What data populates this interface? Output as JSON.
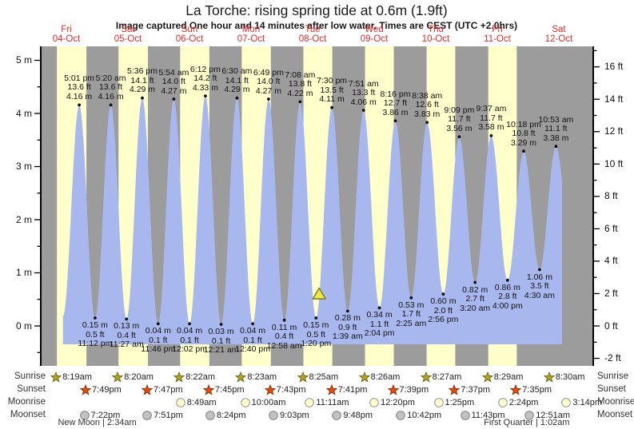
{
  "title": "La Torche: rising  spring tide at 0.6m (1.9ft)",
  "subtitle": "Image captured One hour and 14 minutes after low water. Times are CEST (UTC +2.0hrs)",
  "astro_labels": {
    "sunrise": "Sunrise",
    "sunset": "Sunset",
    "moonrise": "Moonrise",
    "moonset": "Moonset"
  },
  "colors": {
    "band_day_yellow": "#ffffcc",
    "band_night_gray": "#9c9c9c",
    "tide_fill_blue": "#a8b8ee",
    "date_red": "#e32b2b",
    "axis_black": "#000000",
    "marker_fill": "#ece84f",
    "marker_stroke": "#7c7c24",
    "sunrise_star_fill": "#b3a229",
    "sunrise_star_stroke": "#6f6f1d",
    "sunset_star_fill": "#dd4f16",
    "sunset_star_stroke": "#9b2d00",
    "moonrise_circle_fill": "#ffffd0",
    "moonrise_circle_stroke": "#979797",
    "moonset_circle_fill": "#c2c2c2",
    "moonset_circle_stroke": "#848484"
  },
  "chart_data": {
    "type": "area",
    "title": "La Torche: rising  spring tide at 0.6m (1.9ft)",
    "days": [
      {
        "name": "Fri",
        "date": "04-Oct"
      },
      {
        "name": "Sat",
        "date": "05-Oct"
      },
      {
        "name": "Sun",
        "date": "06-Oct"
      },
      {
        "name": "Mon",
        "date": "07-Oct"
      },
      {
        "name": "Tue",
        "date": "08-Oct"
      },
      {
        "name": "Wed",
        "date": "09-Oct"
      },
      {
        "name": "Thu",
        "date": "10-Oct"
      },
      {
        "name": "Fri",
        "date": "11-Oct"
      },
      {
        "name": "Sat",
        "date": "12-Oct"
      }
    ],
    "y_axis_left": {
      "unit": "m",
      "ticks": [
        "5 m",
        "4 m",
        "3 m",
        "2 m",
        "1 m",
        "0 m"
      ],
      "tick_values": [
        5,
        4,
        3,
        2,
        1,
        0
      ]
    },
    "y_axis_right": {
      "unit": "ft",
      "ticks": [
        "16 ft",
        "14 ft",
        "12 ft",
        "10 ft",
        "8 ft",
        "6 ft",
        "4 ft",
        "2 ft",
        "0 ft",
        "-2 ft"
      ],
      "tick_values": [
        16,
        14,
        12,
        10,
        8,
        6,
        4,
        2,
        0,
        -2
      ]
    },
    "tide_events": [
      {
        "type": "low",
        "day": 0,
        "time": "10:40 am",
        "m": 0.18,
        "labeled": false
      },
      {
        "type": "high",
        "day": 0,
        "time": "5:01 pm",
        "m": 4.16,
        "ft": 13.6,
        "labeled": true
      },
      {
        "type": "low",
        "day": 0,
        "time": "11:12 pm",
        "m": 0.15,
        "ft": 0.5,
        "labeled": true
      },
      {
        "type": "high",
        "day": 1,
        "time": "5:20 am",
        "m": 4.16,
        "ft": 13.6,
        "labeled": true
      },
      {
        "type": "low",
        "day": 1,
        "time": "11:27 am",
        "m": 0.13,
        "ft": 0.4,
        "labeled": true
      },
      {
        "type": "high",
        "day": 1,
        "time": "5:36 pm",
        "m": 4.29,
        "ft": 14.1,
        "labeled": true
      },
      {
        "type": "low",
        "day": 1,
        "time": "11:46 pm",
        "m": 0.04,
        "ft": 0.1,
        "labeled": true
      },
      {
        "type": "high",
        "day": 2,
        "time": "5:54 am",
        "m": 4.27,
        "ft": 14.0,
        "labeled": true
      },
      {
        "type": "low",
        "day": 2,
        "time": "12:02 pm",
        "m": 0.04,
        "ft": 0.1,
        "labeled": true
      },
      {
        "type": "high",
        "day": 2,
        "time": "6:12 pm",
        "m": 4.33,
        "ft": 14.2,
        "labeled": true
      },
      {
        "type": "low",
        "day": 3,
        "time": "12:21 am",
        "m": 0.03,
        "ft": 0.1,
        "labeled": true
      },
      {
        "type": "high",
        "day": 3,
        "time": "6:30 am",
        "m": 4.29,
        "ft": 14.1,
        "labeled": true
      },
      {
        "type": "low",
        "day": 3,
        "time": "12:40 pm",
        "m": 0.04,
        "ft": 0.1,
        "labeled": true
      },
      {
        "type": "high",
        "day": 3,
        "time": "6:49 pm",
        "m": 4.27,
        "ft": 14.0,
        "labeled": true
      },
      {
        "type": "low",
        "day": 4,
        "time": "12:58 am",
        "m": 0.11,
        "ft": 0.4,
        "labeled": true
      },
      {
        "type": "high",
        "day": 4,
        "time": "7:08 am",
        "m": 4.22,
        "ft": 13.8,
        "labeled": true
      },
      {
        "type": "low",
        "day": 4,
        "time": "1:20 pm",
        "m": 0.15,
        "ft": 0.5,
        "labeled": true
      },
      {
        "type": "high",
        "day": 4,
        "time": "7:30 pm",
        "m": 4.11,
        "ft": 13.5,
        "labeled": true
      },
      {
        "type": "low",
        "day": 5,
        "time": "1:39 am",
        "m": 0.28,
        "ft": 0.9,
        "labeled": true
      },
      {
        "type": "high",
        "day": 5,
        "time": "7:51 am",
        "m": 4.06,
        "ft": 13.3,
        "labeled": true
      },
      {
        "type": "low",
        "day": 5,
        "time": "2:04 pm",
        "m": 0.34,
        "ft": 1.1,
        "labeled": true
      },
      {
        "type": "high",
        "day": 5,
        "time": "8:16 pm",
        "m": 3.86,
        "ft": 12.7,
        "labeled": true
      },
      {
        "type": "low",
        "day": 6,
        "time": "2:25 am",
        "m": 0.53,
        "ft": 1.7,
        "labeled": true
      },
      {
        "type": "high",
        "day": 6,
        "time": "8:38 am",
        "m": 3.83,
        "ft": 12.6,
        "labeled": true
      },
      {
        "type": "low",
        "day": 6,
        "time": "2:56 pm",
        "m": 0.6,
        "ft": 2.0,
        "labeled": true
      },
      {
        "type": "high",
        "day": 6,
        "time": "9:09 pm",
        "m": 3.56,
        "ft": 11.7,
        "labeled": true
      },
      {
        "type": "low",
        "day": 7,
        "time": "3:20 am",
        "m": 0.82,
        "ft": 2.7,
        "labeled": true
      },
      {
        "type": "high",
        "day": 7,
        "time": "9:37 am",
        "m": 3.58,
        "ft": 11.7,
        "labeled": true
      },
      {
        "type": "low",
        "day": 7,
        "time": "4:00 pm",
        "m": 0.86,
        "ft": 2.8,
        "labeled": true
      },
      {
        "type": "high",
        "day": 7,
        "time": "10:18 pm",
        "m": 3.29,
        "ft": 10.8,
        "labeled": true
      },
      {
        "type": "low",
        "day": 8,
        "time": "4:30 am",
        "m": 1.06,
        "ft": 3.5,
        "labeled": true
      },
      {
        "type": "high",
        "day": 8,
        "time": "10:53 am",
        "m": 3.38,
        "ft": 11.1,
        "labeled": true
      },
      {
        "type": "low",
        "day": 8,
        "time": "5:15 pm",
        "m": 1.15,
        "labeled": false
      }
    ],
    "current_marker": {
      "day": 4,
      "time": "2:34 pm",
      "m": 0.6
    },
    "sunrise": [
      {
        "day": 0,
        "time": "8:19am"
      },
      {
        "day": 1,
        "time": "8:20am"
      },
      {
        "day": 2,
        "time": "8:22am"
      },
      {
        "day": 3,
        "time": "8:23am"
      },
      {
        "day": 4,
        "time": "8:25am"
      },
      {
        "day": 5,
        "time": "8:26am"
      },
      {
        "day": 6,
        "time": "8:27am"
      },
      {
        "day": 7,
        "time": "8:29am"
      },
      {
        "day": 8,
        "time": "8:30am"
      }
    ],
    "sunset": [
      {
        "day": 0,
        "time": "7:49pm"
      },
      {
        "day": 1,
        "time": "7:47pm"
      },
      {
        "day": 2,
        "time": "7:45pm"
      },
      {
        "day": 3,
        "time": "7:43pm"
      },
      {
        "day": 4,
        "time": "7:41pm"
      },
      {
        "day": 5,
        "time": "7:39pm"
      },
      {
        "day": 6,
        "time": "7:37pm"
      },
      {
        "day": 7,
        "time": "7:35pm"
      }
    ],
    "moonrise": [
      {
        "day": 2,
        "time": "8:49am"
      },
      {
        "day": 3,
        "time": "10:00am"
      },
      {
        "day": 4,
        "time": "11:11am"
      },
      {
        "day": 5,
        "time": "12:20pm"
      },
      {
        "day": 6,
        "time": "1:25pm"
      },
      {
        "day": 7,
        "time": "2:24pm"
      },
      {
        "day": 8,
        "time": "3:14pm"
      }
    ],
    "moonset": [
      {
        "day": 0,
        "time": "7:22pm"
      },
      {
        "day": 1,
        "time": "7:51pm"
      },
      {
        "day": 2,
        "time": "8:24pm"
      },
      {
        "day": 3,
        "time": "9:03pm"
      },
      {
        "day": 4,
        "time": "9:48pm"
      },
      {
        "day": 5,
        "time": "10:42pm"
      },
      {
        "day": 6,
        "time": "11:43pm"
      },
      {
        "day": 8,
        "time": "12:51am"
      }
    ],
    "moon_phases": [
      {
        "label": "New Moon | 2:34am",
        "day": 1,
        "time": "0:02am"
      },
      {
        "label": "First Quarter | 1:02am",
        "day": 7,
        "time": "11:30pm"
      }
    ]
  }
}
